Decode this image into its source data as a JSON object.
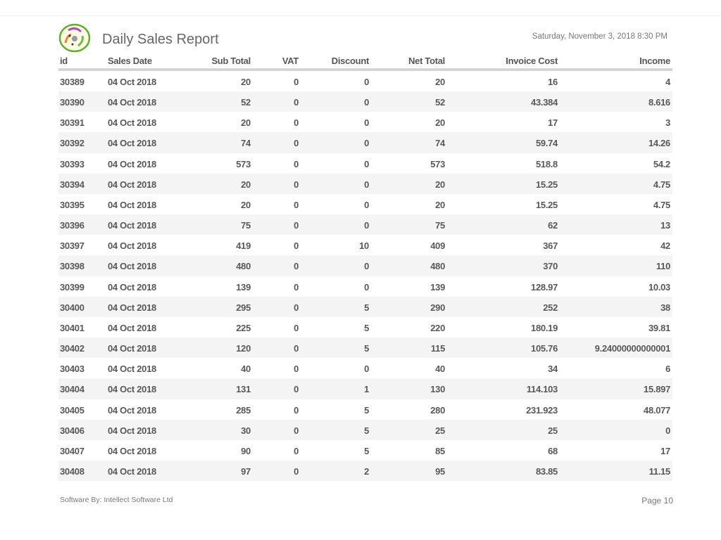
{
  "header": {
    "title": "Daily Sales Report",
    "datetime": "Saturday, November 3, 2018 8:30 PM",
    "logo_icon": "company-logo"
  },
  "table": {
    "columns": [
      "id",
      "Sales Date",
      "Sub Total",
      "VAT",
      "Discount",
      "Net Total",
      "Invoice Cost",
      "Income"
    ],
    "rows": [
      [
        "30389",
        "04 Oct 2018",
        "20",
        "0",
        "0",
        "20",
        "16",
        "4"
      ],
      [
        "30390",
        "04 Oct 2018",
        "52",
        "0",
        "0",
        "52",
        "43.384",
        "8.616"
      ],
      [
        "30391",
        "04 Oct 2018",
        "20",
        "0",
        "0",
        "20",
        "17",
        "3"
      ],
      [
        "30392",
        "04 Oct 2018",
        "74",
        "0",
        "0",
        "74",
        "59.74",
        "14.26"
      ],
      [
        "30393",
        "04 Oct 2018",
        "573",
        "0",
        "0",
        "573",
        "518.8",
        "54.2"
      ],
      [
        "30394",
        "04 Oct 2018",
        "20",
        "0",
        "0",
        "20",
        "15.25",
        "4.75"
      ],
      [
        "30395",
        "04 Oct 2018",
        "20",
        "0",
        "0",
        "20",
        "15.25",
        "4.75"
      ],
      [
        "30396",
        "04 Oct 2018",
        "75",
        "0",
        "0",
        "75",
        "62",
        "13"
      ],
      [
        "30397",
        "04 Oct 2018",
        "419",
        "0",
        "10",
        "409",
        "367",
        "42"
      ],
      [
        "30398",
        "04 Oct 2018",
        "480",
        "0",
        "0",
        "480",
        "370",
        "110"
      ],
      [
        "30399",
        "04 Oct 2018",
        "139",
        "0",
        "0",
        "139",
        "128.97",
        "10.03"
      ],
      [
        "30400",
        "04 Oct 2018",
        "295",
        "0",
        "5",
        "290",
        "252",
        "38"
      ],
      [
        "30401",
        "04 Oct 2018",
        "225",
        "0",
        "5",
        "220",
        "180.19",
        "39.81"
      ],
      [
        "30402",
        "04 Oct 2018",
        "120",
        "0",
        "5",
        "115",
        "105.76",
        "9.24000000000001"
      ],
      [
        "30403",
        "04 Oct 2018",
        "40",
        "0",
        "0",
        "40",
        "34",
        "6"
      ],
      [
        "30404",
        "04 Oct 2018",
        "131",
        "0",
        "1",
        "130",
        "114.103",
        "15.897"
      ],
      [
        "30405",
        "04 Oct 2018",
        "285",
        "0",
        "5",
        "280",
        "231.923",
        "48.077"
      ],
      [
        "30406",
        "04 Oct 2018",
        "30",
        "0",
        "5",
        "25",
        "25",
        "0"
      ],
      [
        "30407",
        "04 Oct 2018",
        "90",
        "0",
        "5",
        "85",
        "68",
        "17"
      ],
      [
        "30408",
        "04 Oct 2018",
        "97",
        "0",
        "2",
        "95",
        "83.85",
        "11.15"
      ]
    ]
  },
  "footer": {
    "software_by": "Software By: Intellect Software Ltd",
    "page": "Page  10"
  }
}
